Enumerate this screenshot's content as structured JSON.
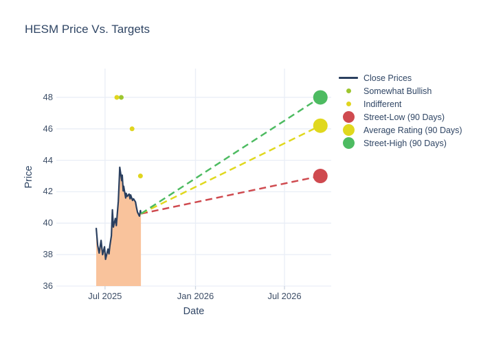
{
  "chart_data": {
    "type": "line+scatter",
    "title": "HESM Price Vs. Targets",
    "xlabel": "Date",
    "ylabel": "Price",
    "grid": true,
    "legend_position": "right",
    "x_range": [
      "2025-03-24",
      "2026-10-04"
    ],
    "y_range": [
      36,
      49.83
    ],
    "y_ticks": [
      36,
      38,
      40,
      42,
      44,
      46,
      48
    ],
    "x_ticks": [
      {
        "label": "Jul 2025",
        "date": "2025-07-01"
      },
      {
        "label": "Jan 2026",
        "date": "2026-01-01"
      },
      {
        "label": "Jul 2026",
        "date": "2026-07-01"
      }
    ],
    "colors": {
      "grid": "#e9eef6",
      "tick_mark": "#ccd4e0",
      "axis_text": "#3c4d66",
      "title_text": "#2f4564",
      "close_line": "#2a3f5f",
      "close_fill": "#f9c39c",
      "somewhat_bullish": "#9dc62f",
      "indifferent": "#e0d51f",
      "street_low": "#cf4a4f",
      "average_rating": "#e0d81e",
      "street_high": "#4dbb61"
    },
    "series": {
      "close_prices": {
        "name": "Close Prices",
        "line_color": "#2a3f5f",
        "fill_color": "#f9c39c",
        "points": [
          [
            "2025-06-13",
            39.7
          ],
          [
            "2025-06-16",
            38.6
          ],
          [
            "2025-06-19",
            38.1
          ],
          [
            "2025-06-23",
            38.9
          ],
          [
            "2025-06-26",
            38.0
          ],
          [
            "2025-06-30",
            38.5
          ],
          [
            "2025-07-02",
            37.7
          ],
          [
            "2025-07-07",
            38.35
          ],
          [
            "2025-07-09",
            38.05
          ],
          [
            "2025-07-11",
            38.6
          ],
          [
            "2025-07-14",
            39.2
          ],
          [
            "2025-07-16",
            40.85
          ],
          [
            "2025-07-18",
            39.75
          ],
          [
            "2025-07-22",
            40.3
          ],
          [
            "2025-07-24",
            39.85
          ],
          [
            "2025-07-28",
            41.4
          ],
          [
            "2025-07-30",
            42.8
          ],
          [
            "2025-07-31",
            43.55
          ],
          [
            "2025-08-04",
            42.7
          ],
          [
            "2025-08-05",
            43.05
          ],
          [
            "2025-08-07",
            42.05
          ],
          [
            "2025-08-08",
            42.35
          ],
          [
            "2025-08-12",
            41.6
          ],
          [
            "2025-08-13",
            41.9
          ],
          [
            "2025-08-15",
            41.7
          ],
          [
            "2025-08-19",
            41.85
          ],
          [
            "2025-08-21",
            41.55
          ],
          [
            "2025-08-22",
            41.8
          ],
          [
            "2025-08-26",
            41.45
          ],
          [
            "2025-08-28",
            41.55
          ],
          [
            "2025-09-01",
            41.35
          ],
          [
            "2025-09-03",
            41.0
          ],
          [
            "2025-09-05",
            40.7
          ],
          [
            "2025-09-09",
            40.45
          ],
          [
            "2025-09-11",
            40.8
          ],
          [
            "2025-09-12",
            40.6
          ]
        ]
      },
      "ratings": [
        {
          "key": "somewhat-bullish",
          "name": "Somewhat Bullish",
          "color": "#9dc62f",
          "points": [
            [
              "2025-08-03",
              48
            ]
          ]
        },
        {
          "key": "indifferent",
          "name": "Indifferent",
          "color": "#e0d51f",
          "points": [
            [
              "2025-07-25",
              48
            ],
            [
              "2025-08-25",
              46
            ],
            [
              "2025-09-11",
              43
            ]
          ]
        }
      ],
      "targets": [
        {
          "key": "street-low",
          "name": "Street-Low (90 Days)",
          "color": "#cf4a4f",
          "start": [
            "2025-09-12",
            40.6
          ],
          "end": [
            "2026-09-12",
            43.0
          ]
        },
        {
          "key": "average-rating",
          "name": "Average Rating (90 Days)",
          "color": "#e0d81e",
          "start": [
            "2025-09-12",
            40.6
          ],
          "end": [
            "2026-09-12",
            46.2
          ]
        },
        {
          "key": "street-high",
          "name": "Street-High (90 Days)",
          "color": "#4dbb61",
          "start": [
            "2025-09-12",
            40.6
          ],
          "end": [
            "2026-09-12",
            48.0
          ]
        }
      ]
    },
    "legend": [
      {
        "label": "Close Prices",
        "color": "#2a3f5f",
        "symbol": "line"
      },
      {
        "label": "Somewhat Bullish",
        "color": "#9dc62f",
        "symbol": "dot-sm"
      },
      {
        "label": "Indifferent",
        "color": "#e0d51f",
        "symbol": "dot-sm"
      },
      {
        "label": "Street-Low (90 Days)",
        "color": "#cf4a4f",
        "symbol": "dot-lg"
      },
      {
        "label": "Average Rating (90 Days)",
        "color": "#e0d81e",
        "symbol": "dot-lg"
      },
      {
        "label": "Street-High (90 Days)",
        "color": "#4dbb61",
        "symbol": "dot-lg"
      }
    ]
  }
}
